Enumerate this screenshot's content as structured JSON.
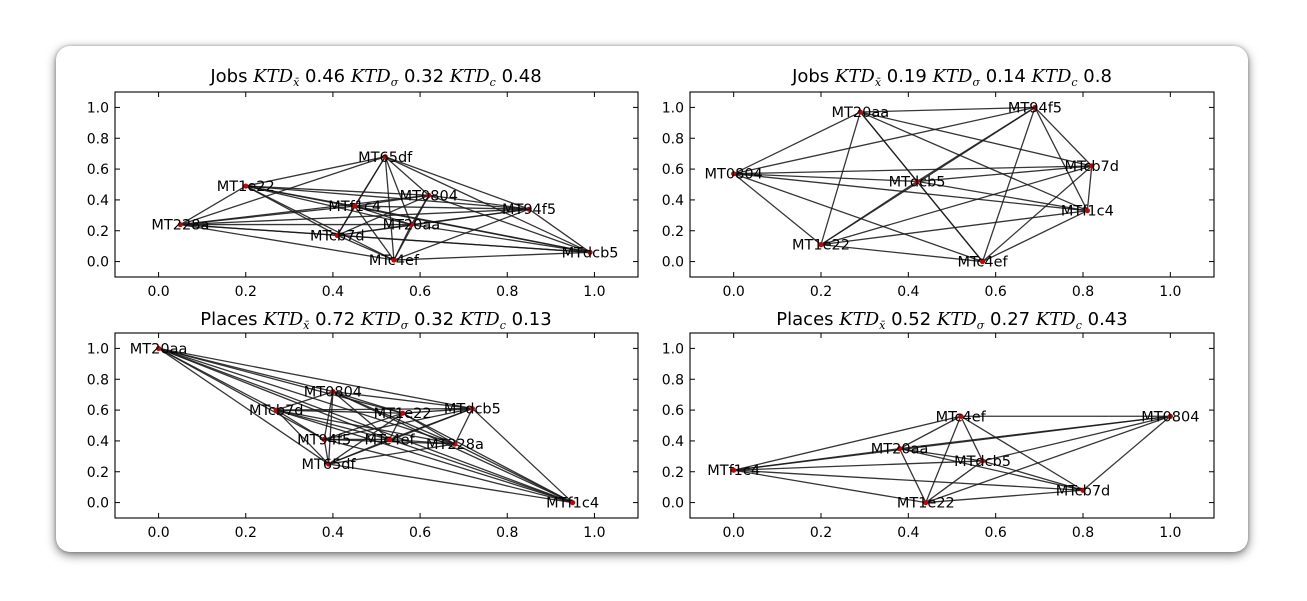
{
  "chart_data": [
    {
      "type": "network",
      "title": {
        "metric": "Jobs",
        "parts": [
          {
            "sym": "KTD",
            "sub": "x̄",
            "val": "0.46"
          },
          {
            "sym": "KTD",
            "sub": "σ",
            "val": "0.32"
          },
          {
            "sym": "KTD",
            "sub": "c",
            "val": "0.48"
          }
        ]
      },
      "xlim": [
        -0.1,
        1.1
      ],
      "ylim": [
        -0.1,
        1.1
      ],
      "xticks": [
        "0.0",
        "0.2",
        "0.4",
        "0.6",
        "0.8",
        "1.0"
      ],
      "yticks": [
        "0.0",
        "0.2",
        "0.4",
        "0.6",
        "0.8",
        "1.0"
      ],
      "nodes": [
        {
          "id": "MT65df",
          "x": 0.52,
          "y": 0.68
        },
        {
          "id": "MT1e22",
          "x": 0.2,
          "y": 0.49
        },
        {
          "id": "MT0804",
          "x": 0.62,
          "y": 0.43
        },
        {
          "id": "MTf1c4",
          "x": 0.45,
          "y": 0.36
        },
        {
          "id": "MT94f5",
          "x": 0.85,
          "y": 0.34
        },
        {
          "id": "MT228a",
          "x": 0.05,
          "y": 0.24
        },
        {
          "id": "MT20aa",
          "x": 0.58,
          "y": 0.24
        },
        {
          "id": "MTcb7d",
          "x": 0.41,
          "y": 0.17
        },
        {
          "id": "MTc4ef",
          "x": 0.54,
          "y": 0.01
        },
        {
          "id": "MTdcb5",
          "x": 0.99,
          "y": 0.06
        }
      ],
      "edges": [
        [
          "MT65df",
          "MT1e22"
        ],
        [
          "MT65df",
          "MT0804"
        ],
        [
          "MT65df",
          "MTf1c4"
        ],
        [
          "MT65df",
          "MT94f5"
        ],
        [
          "MT65df",
          "MT228a"
        ],
        [
          "MT65df",
          "MT20aa"
        ],
        [
          "MT65df",
          "MTcb7d"
        ],
        [
          "MT65df",
          "MTc4ef"
        ],
        [
          "MT65df",
          "MTdcb5"
        ],
        [
          "MT1e22",
          "MT0804"
        ],
        [
          "MT1e22",
          "MTf1c4"
        ],
        [
          "MT1e22",
          "MT94f5"
        ],
        [
          "MT1e22",
          "MT228a"
        ],
        [
          "MT1e22",
          "MT20aa"
        ],
        [
          "MT1e22",
          "MTcb7d"
        ],
        [
          "MT1e22",
          "MTc4ef"
        ],
        [
          "MT1e22",
          "MTdcb5"
        ],
        [
          "MT0804",
          "MTf1c4"
        ],
        [
          "MT0804",
          "MT94f5"
        ],
        [
          "MT0804",
          "MT228a"
        ],
        [
          "MT0804",
          "MT20aa"
        ],
        [
          "MT0804",
          "MTcb7d"
        ],
        [
          "MT0804",
          "MTc4ef"
        ],
        [
          "MT0804",
          "MTdcb5"
        ],
        [
          "MTf1c4",
          "MT94f5"
        ],
        [
          "MTf1c4",
          "MT228a"
        ],
        [
          "MTf1c4",
          "MT20aa"
        ],
        [
          "MTf1c4",
          "MTcb7d"
        ],
        [
          "MTf1c4",
          "MTc4ef"
        ],
        [
          "MTf1c4",
          "MTdcb5"
        ],
        [
          "MT94f5",
          "MT228a"
        ],
        [
          "MT94f5",
          "MT20aa"
        ],
        [
          "MT94f5",
          "MTcb7d"
        ],
        [
          "MT94f5",
          "MTc4ef"
        ],
        [
          "MT94f5",
          "MTdcb5"
        ],
        [
          "MT228a",
          "MT20aa"
        ],
        [
          "MT228a",
          "MTcb7d"
        ],
        [
          "MT228a",
          "MTc4ef"
        ],
        [
          "MT228a",
          "MTdcb5"
        ],
        [
          "MT20aa",
          "MTcb7d"
        ],
        [
          "MT20aa",
          "MTc4ef"
        ],
        [
          "MT20aa",
          "MTdcb5"
        ],
        [
          "MTcb7d",
          "MTc4ef"
        ],
        [
          "MTcb7d",
          "MTdcb5"
        ],
        [
          "MTc4ef",
          "MTdcb5"
        ]
      ]
    },
    {
      "type": "network",
      "title": {
        "metric": "Jobs",
        "parts": [
          {
            "sym": "KTD",
            "sub": "x̄",
            "val": "0.19"
          },
          {
            "sym": "KTD",
            "sub": "σ",
            "val": "0.14"
          },
          {
            "sym": "KTD",
            "sub": "c",
            "val": "0.8"
          }
        ]
      },
      "xlim": [
        -0.1,
        1.1
      ],
      "ylim": [
        -0.1,
        1.1
      ],
      "xticks": [
        "0.0",
        "0.2",
        "0.4",
        "0.6",
        "0.8",
        "1.0"
      ],
      "yticks": [
        "0.0",
        "0.2",
        "0.4",
        "0.6",
        "0.8",
        "1.0"
      ],
      "nodes": [
        {
          "id": "MT94f5",
          "x": 0.69,
          "y": 1.0
        },
        {
          "id": "MT20aa",
          "x": 0.29,
          "y": 0.97
        },
        {
          "id": "MTcb7d",
          "x": 0.82,
          "y": 0.62
        },
        {
          "id": "MT0804",
          "x": 0.0,
          "y": 0.57
        },
        {
          "id": "MTdcb5",
          "x": 0.42,
          "y": 0.52
        },
        {
          "id": "MTf1c4",
          "x": 0.81,
          "y": 0.33
        },
        {
          "id": "MT1e22",
          "x": 0.2,
          "y": 0.11
        },
        {
          "id": "MTc4ef",
          "x": 0.57,
          "y": 0.0
        }
      ],
      "edges": [
        [
          "MT94f5",
          "MT20aa"
        ],
        [
          "MT94f5",
          "MTcb7d"
        ],
        [
          "MT94f5",
          "MT0804"
        ],
        [
          "MT94f5",
          "MTdcb5"
        ],
        [
          "MT94f5",
          "MTf1c4"
        ],
        [
          "MT94f5",
          "MT1e22"
        ],
        [
          "MT94f5",
          "MTc4ef"
        ],
        [
          "MT20aa",
          "MTcb7d"
        ],
        [
          "MT20aa",
          "MT0804"
        ],
        [
          "MT20aa",
          "MTdcb5"
        ],
        [
          "MT20aa",
          "MTf1c4"
        ],
        [
          "MT20aa",
          "MT1e22"
        ],
        [
          "MT20aa",
          "MTc4ef"
        ],
        [
          "MTcb7d",
          "MT0804"
        ],
        [
          "MTcb7d",
          "MTdcb5"
        ],
        [
          "MTcb7d",
          "MTf1c4"
        ],
        [
          "MTcb7d",
          "MT1e22"
        ],
        [
          "MTcb7d",
          "MTc4ef"
        ],
        [
          "MT0804",
          "MTdcb5"
        ],
        [
          "MT0804",
          "MTf1c4"
        ],
        [
          "MT0804",
          "MT1e22"
        ],
        [
          "MT0804",
          "MTc4ef"
        ],
        [
          "MTdcb5",
          "MTf1c4"
        ],
        [
          "MTdcb5",
          "MT1e22"
        ],
        [
          "MTdcb5",
          "MTc4ef"
        ],
        [
          "MTf1c4",
          "MT1e22"
        ],
        [
          "MTf1c4",
          "MTc4ef"
        ],
        [
          "MT1e22",
          "MTc4ef"
        ]
      ]
    },
    {
      "type": "network",
      "title": {
        "metric": "Places",
        "parts": [
          {
            "sym": "KTD",
            "sub": "x̄",
            "val": "0.72"
          },
          {
            "sym": "KTD",
            "sub": "σ",
            "val": "0.32"
          },
          {
            "sym": "KTD",
            "sub": "c",
            "val": "0.13"
          }
        ]
      },
      "xlim": [
        -0.1,
        1.1
      ],
      "ylim": [
        -0.1,
        1.1
      ],
      "xticks": [
        "0.0",
        "0.2",
        "0.4",
        "0.6",
        "0.8",
        "1.0"
      ],
      "yticks": [
        "0.0",
        "0.2",
        "0.4",
        "0.6",
        "0.8",
        "1.0"
      ],
      "nodes": [
        {
          "id": "MT20aa",
          "x": 0.0,
          "y": 1.0
        },
        {
          "id": "MT0804",
          "x": 0.4,
          "y": 0.72
        },
        {
          "id": "MTcb7d",
          "x": 0.27,
          "y": 0.6
        },
        {
          "id": "MTdcb5",
          "x": 0.72,
          "y": 0.61
        },
        {
          "id": "MT1e22",
          "x": 0.56,
          "y": 0.58
        },
        {
          "id": "MT94f5",
          "x": 0.38,
          "y": 0.41
        },
        {
          "id": "MTc4ef",
          "x": 0.53,
          "y": 0.41
        },
        {
          "id": "MT228a",
          "x": 0.68,
          "y": 0.38
        },
        {
          "id": "MT65df",
          "x": 0.39,
          "y": 0.25
        },
        {
          "id": "MTf1c4",
          "x": 0.95,
          "y": 0.0
        }
      ],
      "edges": [
        [
          "MT20aa",
          "MT0804"
        ],
        [
          "MT20aa",
          "MTcb7d"
        ],
        [
          "MT20aa",
          "MTdcb5"
        ],
        [
          "MT20aa",
          "MT1e22"
        ],
        [
          "MT20aa",
          "MT94f5"
        ],
        [
          "MT20aa",
          "MTc4ef"
        ],
        [
          "MT20aa",
          "MT228a"
        ],
        [
          "MT20aa",
          "MT65df"
        ],
        [
          "MT20aa",
          "MTf1c4"
        ],
        [
          "MT0804",
          "MTcb7d"
        ],
        [
          "MT0804",
          "MTdcb5"
        ],
        [
          "MT0804",
          "MT1e22"
        ],
        [
          "MT0804",
          "MT94f5"
        ],
        [
          "MT0804",
          "MTc4ef"
        ],
        [
          "MT0804",
          "MT228a"
        ],
        [
          "MT0804",
          "MT65df"
        ],
        [
          "MT0804",
          "MTf1c4"
        ],
        [
          "MTcb7d",
          "MTdcb5"
        ],
        [
          "MTcb7d",
          "MT1e22"
        ],
        [
          "MTcb7d",
          "MT94f5"
        ],
        [
          "MTcb7d",
          "MTc4ef"
        ],
        [
          "MTcb7d",
          "MT228a"
        ],
        [
          "MTcb7d",
          "MT65df"
        ],
        [
          "MTcb7d",
          "MTf1c4"
        ],
        [
          "MTdcb5",
          "MT1e22"
        ],
        [
          "MTdcb5",
          "MT94f5"
        ],
        [
          "MTdcb5",
          "MTc4ef"
        ],
        [
          "MTdcb5",
          "MT228a"
        ],
        [
          "MTdcb5",
          "MT65df"
        ],
        [
          "MTdcb5",
          "MTf1c4"
        ],
        [
          "MT1e22",
          "MT94f5"
        ],
        [
          "MT1e22",
          "MTc4ef"
        ],
        [
          "MT1e22",
          "MT228a"
        ],
        [
          "MT1e22",
          "MT65df"
        ],
        [
          "MT1e22",
          "MTf1c4"
        ],
        [
          "MT94f5",
          "MTc4ef"
        ],
        [
          "MT94f5",
          "MT228a"
        ],
        [
          "MT94f5",
          "MT65df"
        ],
        [
          "MT94f5",
          "MTf1c4"
        ],
        [
          "MTc4ef",
          "MT228a"
        ],
        [
          "MTc4ef",
          "MT65df"
        ],
        [
          "MTc4ef",
          "MTf1c4"
        ],
        [
          "MT228a",
          "MT65df"
        ],
        [
          "MT228a",
          "MTf1c4"
        ],
        [
          "MT65df",
          "MTf1c4"
        ]
      ]
    },
    {
      "type": "network",
      "title": {
        "metric": "Places",
        "parts": [
          {
            "sym": "KTD",
            "sub": "x̄",
            "val": "0.52"
          },
          {
            "sym": "KTD",
            "sub": "σ",
            "val": "0.27"
          },
          {
            "sym": "KTD",
            "sub": "c",
            "val": "0.43"
          }
        ]
      },
      "xlim": [
        -0.1,
        1.1
      ],
      "ylim": [
        -0.1,
        1.1
      ],
      "xticks": [
        "0.0",
        "0.2",
        "0.4",
        "0.6",
        "0.8",
        "1.0"
      ],
      "yticks": [
        "0.0",
        "0.2",
        "0.4",
        "0.6",
        "0.8",
        "1.0"
      ],
      "nodes": [
        {
          "id": "MTc4ef",
          "x": 0.52,
          "y": 0.56
        },
        {
          "id": "MT0804",
          "x": 1.0,
          "y": 0.56
        },
        {
          "id": "MT20aa",
          "x": 0.38,
          "y": 0.35
        },
        {
          "id": "MTdcb5",
          "x": 0.57,
          "y": 0.27
        },
        {
          "id": "MTf1c4",
          "x": 0.0,
          "y": 0.21
        },
        {
          "id": "MTcb7d",
          "x": 0.8,
          "y": 0.08
        },
        {
          "id": "MT1e22",
          "x": 0.44,
          "y": 0.0
        }
      ],
      "edges": [
        [
          "MTc4ef",
          "MT0804"
        ],
        [
          "MTc4ef",
          "MT20aa"
        ],
        [
          "MTc4ef",
          "MTdcb5"
        ],
        [
          "MTc4ef",
          "MTf1c4"
        ],
        [
          "MTc4ef",
          "MTcb7d"
        ],
        [
          "MTc4ef",
          "MT1e22"
        ],
        [
          "MT0804",
          "MT20aa"
        ],
        [
          "MT0804",
          "MTdcb5"
        ],
        [
          "MT0804",
          "MTf1c4"
        ],
        [
          "MT0804",
          "MTcb7d"
        ],
        [
          "MT0804",
          "MT1e22"
        ],
        [
          "MT20aa",
          "MTdcb5"
        ],
        [
          "MT20aa",
          "MTf1c4"
        ],
        [
          "MT20aa",
          "MTcb7d"
        ],
        [
          "MT20aa",
          "MT1e22"
        ],
        [
          "MTdcb5",
          "MTf1c4"
        ],
        [
          "MTdcb5",
          "MTcb7d"
        ],
        [
          "MTdcb5",
          "MT1e22"
        ],
        [
          "MTf1c4",
          "MTcb7d"
        ],
        [
          "MTf1c4",
          "MT1e22"
        ],
        [
          "MTcb7d",
          "MT1e22"
        ]
      ]
    }
  ]
}
